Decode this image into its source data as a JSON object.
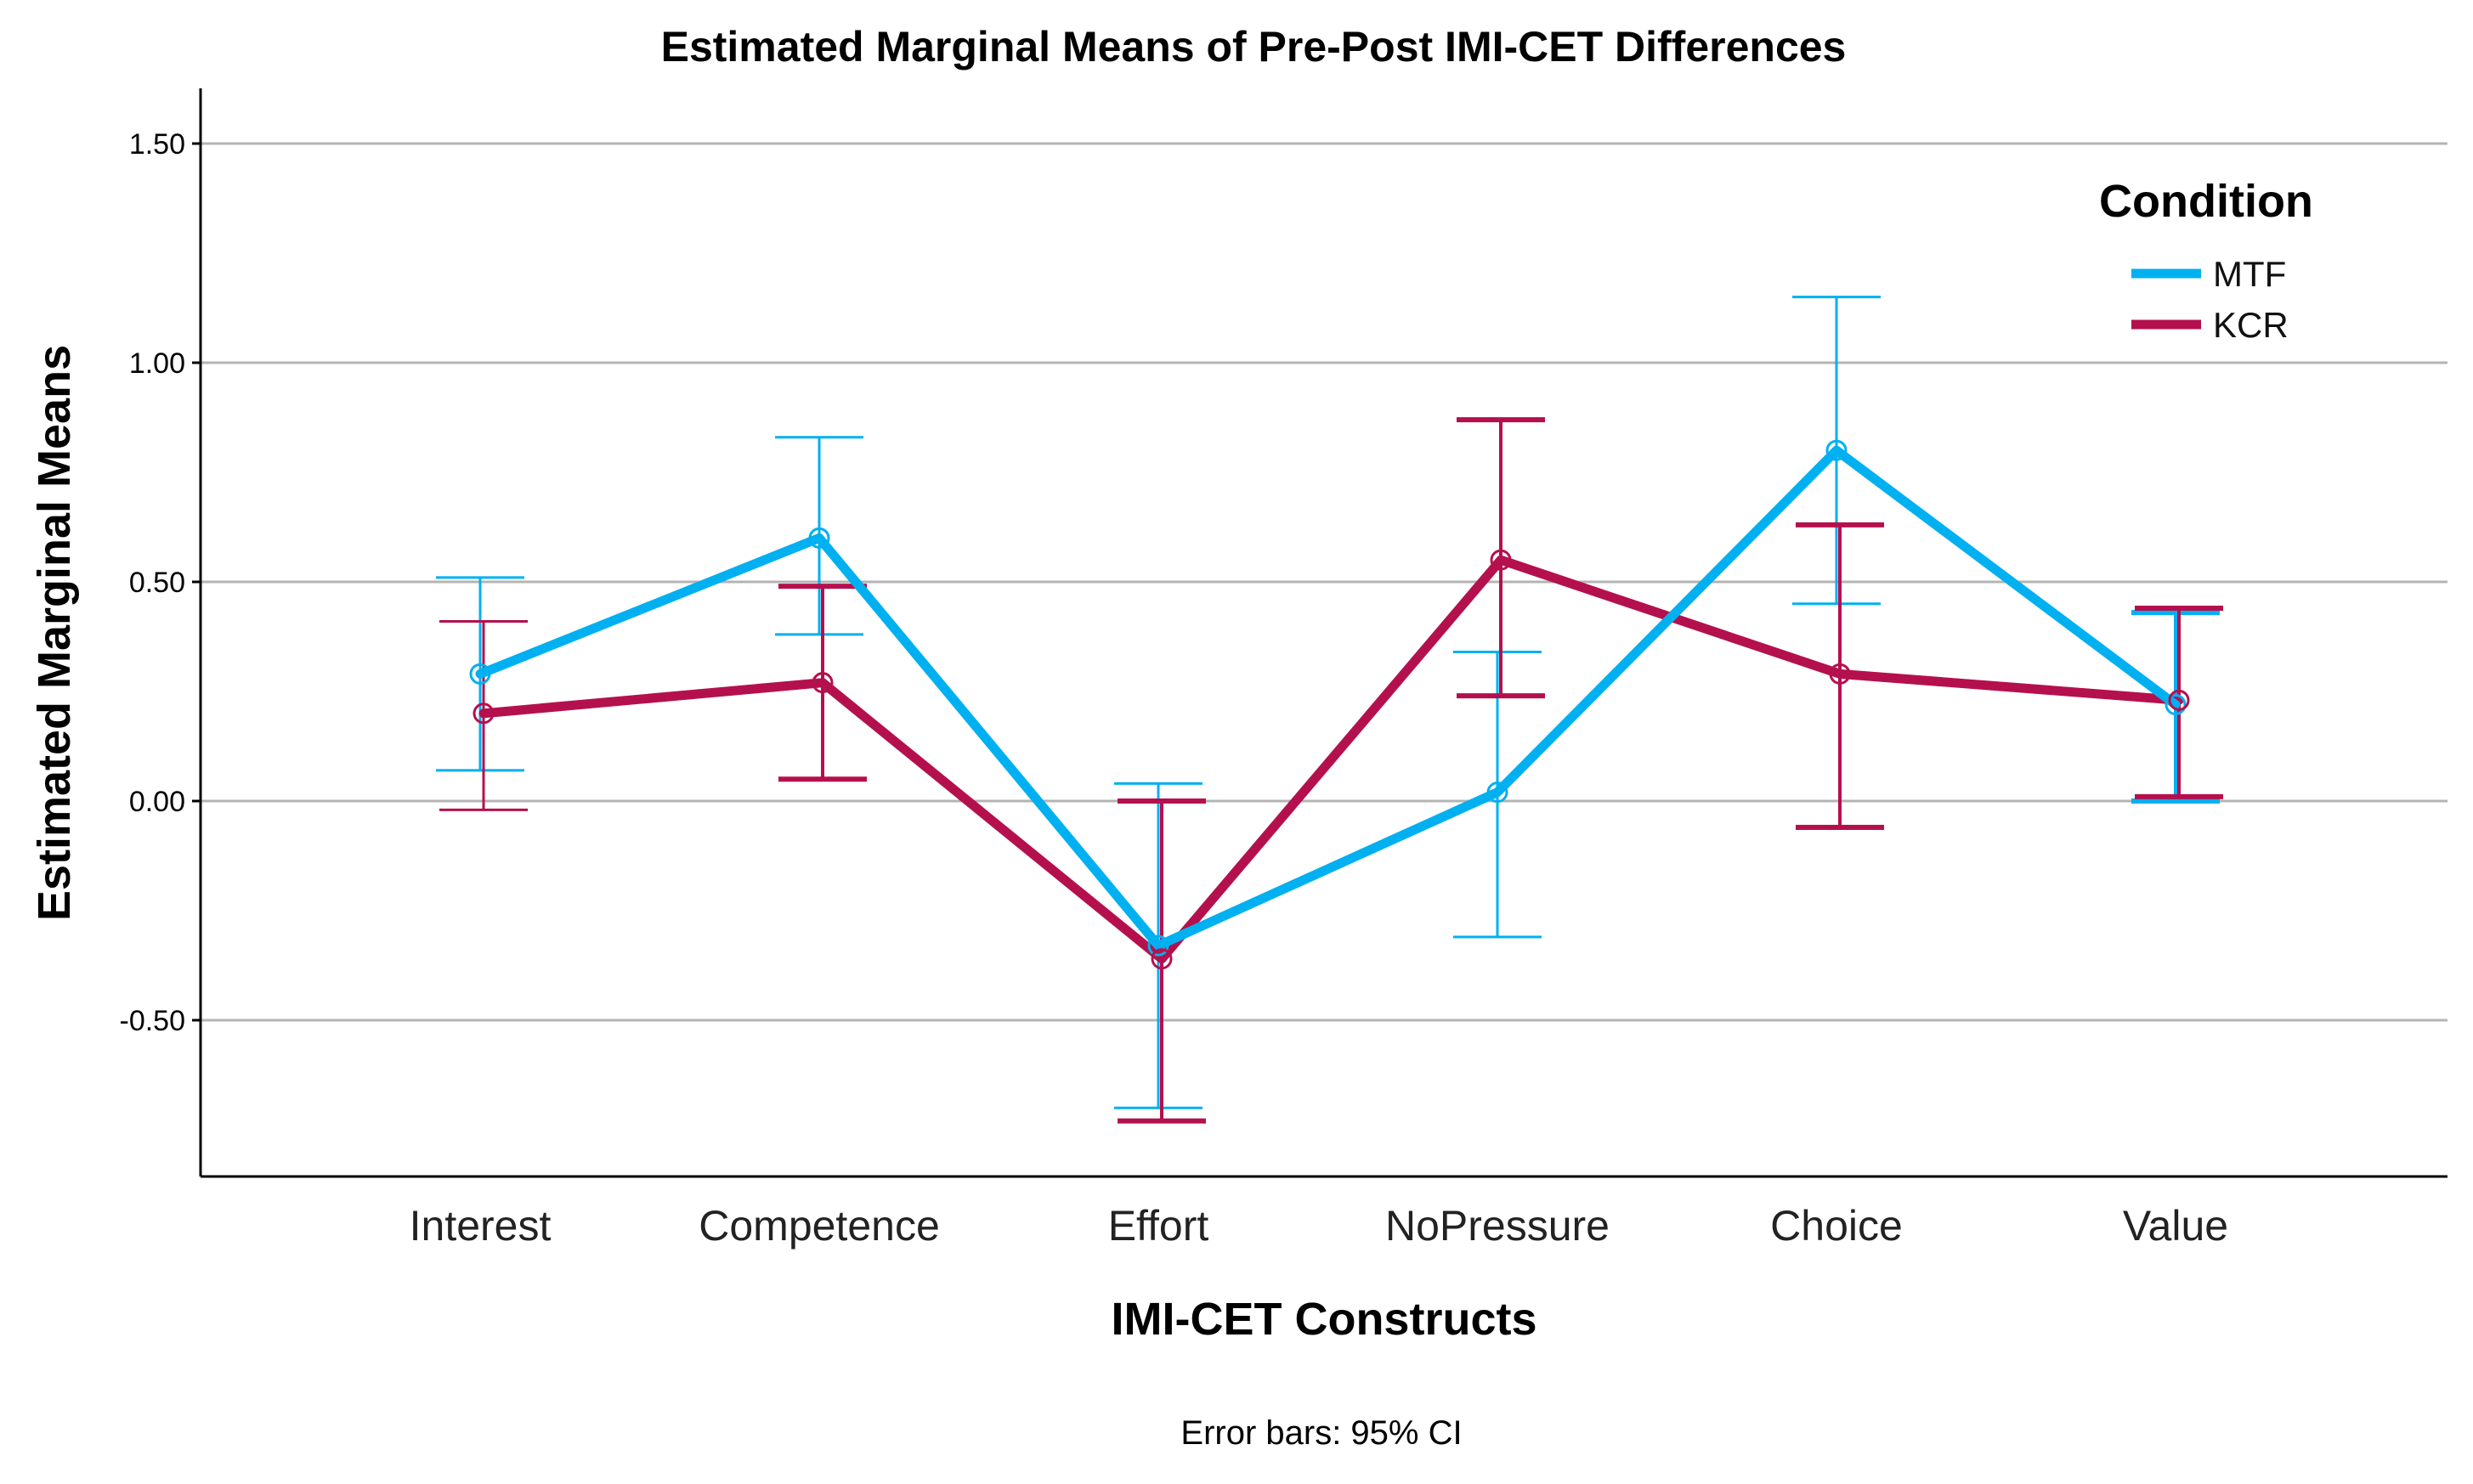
{
  "chart_data": {
    "type": "line",
    "title": "Estimated Marginal Means of Pre-Post IMI-CET Differences",
    "xlabel": "IMI-CET Constructs",
    "ylabel": "Estimated Marginal Means",
    "ylim": [
      -0.85,
      1.62
    ],
    "yticks": [
      1.5,
      1.0,
      0.5,
      0.0,
      -0.5
    ],
    "ytick_labels": [
      "1.50",
      "1.00",
      "0.50",
      "0.00",
      "-0.50"
    ],
    "grid": true,
    "categories": [
      "Interest",
      "Competence",
      "Effort",
      "NoPressure",
      "Choice",
      "Value"
    ],
    "legend": {
      "title": "Condition",
      "position": "top-right"
    },
    "footnote": "Error bars: 95% CI",
    "series": [
      {
        "name": "MTF",
        "color": "#00b0f0",
        "values": [
          0.29,
          0.6,
          -0.33,
          0.02,
          0.8,
          0.22
        ],
        "ci_lower": [
          0.07,
          0.38,
          -0.7,
          -0.31,
          0.45,
          0.0
        ],
        "ci_upper": [
          0.51,
          0.83,
          0.04,
          0.34,
          1.15,
          0.43
        ]
      },
      {
        "name": "KCR",
        "color": "#b5104e",
        "values": [
          0.2,
          0.27,
          -0.36,
          0.55,
          0.29,
          0.23
        ],
        "ci_lower": [
          -0.02,
          0.05,
          -0.73,
          0.24,
          -0.06,
          0.01
        ],
        "ci_upper": [
          0.41,
          0.49,
          0.0,
          0.87,
          0.63,
          0.44
        ]
      }
    ]
  }
}
